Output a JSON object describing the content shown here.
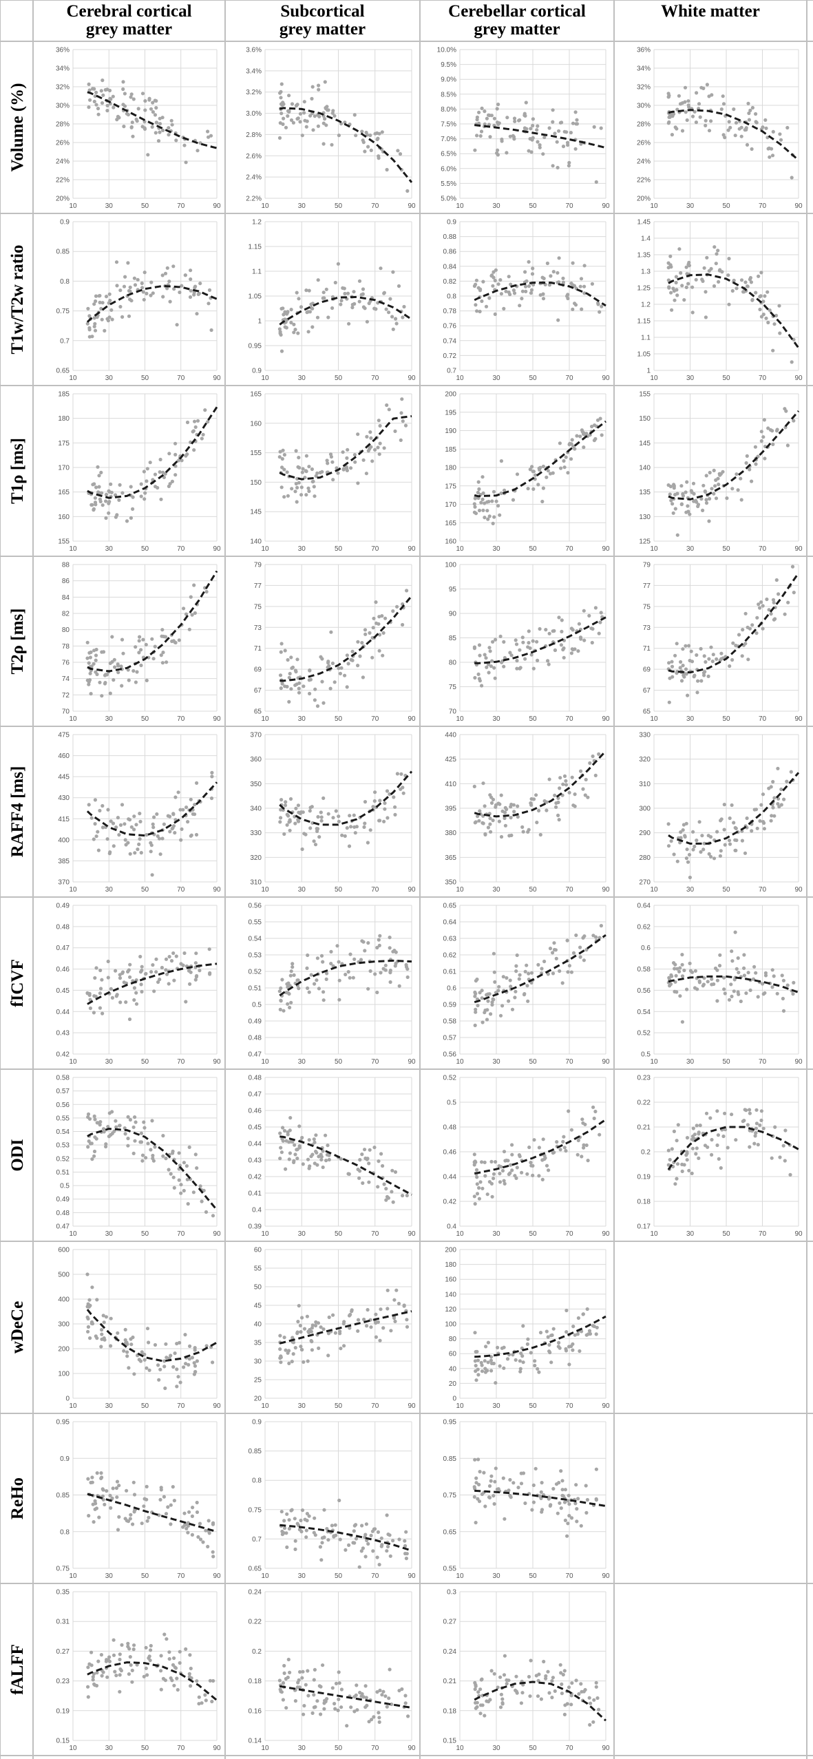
{
  "columns": [
    "Cerebral cortical\ngrey matter",
    "Subcortical\ngrey matter",
    "Cerebellar cortical\ngrey matter",
    "White matter"
  ],
  "rows": [
    "Volume (%)",
    "T1w/T2w ratio",
    "T1ρ [ms]",
    "T2ρ [ms]",
    "RAFF4 [ms]",
    "fICVF",
    "ODI",
    "wDeCe",
    "ReHo",
    "fALFF"
  ],
  "x_axis": {
    "ticks": [
      10,
      30,
      50,
      70,
      90
    ],
    "range": [
      10,
      90
    ]
  },
  "colors": {
    "points": "#a6a6a6",
    "fit": "#1a1a1a",
    "grid": "#d9d9d9",
    "border": "#bfbfbf"
  },
  "chart_data": [
    {
      "row": 0,
      "col": 0,
      "type": "scatter",
      "ylabel": "Volume (%)",
      "yticks": [
        "20%",
        "22%",
        "24%",
        "26%",
        "28%",
        "30%",
        "32%",
        "34%",
        "36%"
      ],
      "ylim": [
        20,
        36
      ],
      "fit": [
        31.9,
        31.3,
        30.4,
        29.4,
        28.4,
        27.5,
        26.6,
        25.9,
        25.4
      ],
      "grid": true
    },
    {
      "row": 0,
      "col": 1,
      "type": "scatter",
      "yticks": [
        "2.2%",
        "2.4%",
        "2.6%",
        "2.8%",
        "3.0%",
        "3.2%",
        "3.4%",
        "3.6%"
      ],
      "ylim": [
        2.2,
        3.6
      ],
      "fit": [
        3.01,
        3.05,
        3.04,
        3.0,
        2.93,
        2.84,
        2.72,
        2.56,
        2.35
      ],
      "grid": true
    },
    {
      "row": 0,
      "col": 2,
      "type": "scatter",
      "yticks": [
        "5.0%",
        "5.5%",
        "6.0%",
        "6.5%",
        "7.0%",
        "7.5%",
        "8.0%",
        "8.5%",
        "9.0%",
        "9.5%",
        "10.0%"
      ],
      "ylim": [
        5,
        10
      ],
      "fit": [
        7.52,
        7.45,
        7.38,
        7.3,
        7.2,
        7.1,
        6.98,
        6.85,
        6.7
      ],
      "grid": true
    },
    {
      "row": 0,
      "col": 3,
      "type": "scatter",
      "yticks": [
        "20%",
        "22%",
        "24%",
        "26%",
        "28%",
        "30%",
        "32%",
        "34%",
        "36%"
      ],
      "ylim": [
        20,
        36
      ],
      "fit": [
        28.8,
        29.3,
        29.5,
        29.4,
        29.0,
        28.2,
        27.2,
        25.8,
        24.1
      ],
      "grid": true
    },
    {
      "row": 1,
      "col": 0,
      "type": "scatter",
      "ylabel": "T1w/T2w ratio",
      "yticks": [
        "0.65",
        "0.7",
        "0.75",
        "0.8",
        "0.85",
        "0.9"
      ],
      "ylim": [
        0.65,
        0.9
      ],
      "fit": [
        0.708,
        0.737,
        0.76,
        0.776,
        0.787,
        0.792,
        0.79,
        0.783,
        0.77
      ],
      "grid": true
    },
    {
      "row": 1,
      "col": 1,
      "type": "scatter",
      "yticks": [
        "0.9",
        "0.95",
        "1",
        "1.05",
        "1.1",
        "1.15",
        "1.2"
      ],
      "ylim": [
        0.9,
        1.2
      ],
      "fit": [
        0.97,
        0.998,
        1.02,
        1.037,
        1.047,
        1.048,
        1.042,
        1.027,
        1.003
      ],
      "grid": true
    },
    {
      "row": 1,
      "col": 2,
      "type": "scatter",
      "yticks": [
        "0.7",
        "0.72",
        "0.74",
        "0.76",
        "0.78",
        "0.8",
        "0.82",
        "0.84",
        "0.86",
        "0.88",
        "0.9"
      ],
      "ylim": [
        0.7,
        0.9
      ],
      "fit": [
        0.785,
        0.797,
        0.807,
        0.814,
        0.818,
        0.818,
        0.813,
        0.803,
        0.787
      ],
      "grid": true
    },
    {
      "row": 1,
      "col": 3,
      "type": "scatter",
      "yticks": [
        "1",
        "1.05",
        "1.1",
        "1.15",
        "1.2",
        "1.25",
        "1.3",
        "1.35",
        "1.4",
        "1.45"
      ],
      "ylim": [
        1,
        1.45
      ],
      "fit": [
        1.238,
        1.27,
        1.288,
        1.29,
        1.277,
        1.248,
        1.203,
        1.143,
        1.068
      ],
      "grid": true
    },
    {
      "row": 2,
      "col": 0,
      "type": "scatter",
      "ylabel": "T1ρ [ms]",
      "yticks": [
        "155",
        "160",
        "165",
        "170",
        "175",
        "180",
        "185"
      ],
      "ylim": [
        155,
        185
      ],
      "fit": [
        167,
        164.8,
        163.8,
        164.2,
        165.8,
        168.4,
        172,
        176.7,
        182.3
      ],
      "grid": true
    },
    {
      "row": 2,
      "col": 1,
      "type": "scatter",
      "yticks": [
        "140",
        "145",
        "150",
        "155",
        "160",
        "165"
      ],
      "ylim": [
        140,
        165
      ],
      "fit": [
        153,
        151.3,
        150.5,
        150.8,
        152.1,
        154.4,
        157.3,
        160.8,
        161.2
      ],
      "grid": true
    },
    {
      "row": 2,
      "col": 2,
      "type": "scatter",
      "yticks": [
        "160",
        "165",
        "170",
        "175",
        "180",
        "185",
        "190",
        "195",
        "200"
      ],
      "ylim": [
        160,
        200
      ],
      "fit": [
        173.5,
        172.2,
        172.4,
        174,
        177,
        180.6,
        184.7,
        188.7,
        192.5
      ],
      "grid": true
    },
    {
      "row": 2,
      "col": 3,
      "type": "scatter",
      "yticks": [
        "125",
        "130",
        "135",
        "140",
        "145",
        "150",
        "155"
      ],
      "ylim": [
        125,
        155
      ],
      "fit": [
        135.3,
        133.8,
        133.5,
        134.5,
        136.5,
        139.4,
        143.1,
        147.2,
        151.5
      ],
      "grid": true
    },
    {
      "row": 3,
      "col": 0,
      "type": "scatter",
      "ylabel": "T2ρ [ms]",
      "yticks": [
        "70",
        "72",
        "74",
        "76",
        "78",
        "80",
        "82",
        "84",
        "86",
        "88"
      ],
      "ylim": [
        70,
        88
      ],
      "fit": [
        76.2,
        75.2,
        74.9,
        75.3,
        76.4,
        78.2,
        80.6,
        83.6,
        87.2
      ],
      "grid": true
    },
    {
      "row": 3,
      "col": 1,
      "type": "scatter",
      "yticks": [
        "65",
        "67",
        "69",
        "71",
        "73",
        "75",
        "77",
        "79"
      ],
      "ylim": [
        65,
        79
      ],
      "fit": [
        68,
        67.9,
        68.1,
        68.6,
        69.4,
        70.6,
        72.1,
        73.9,
        76
      ],
      "grid": true
    },
    {
      "row": 3,
      "col": 2,
      "type": "scatter",
      "yticks": [
        "70",
        "75",
        "80",
        "85",
        "90",
        "95",
        "100"
      ],
      "ylim": [
        70,
        100
      ],
      "fit": [
        80,
        79.8,
        80.1,
        80.9,
        82.1,
        83.6,
        85.3,
        87.2,
        89.2
      ],
      "grid": true
    },
    {
      "row": 3,
      "col": 3,
      "type": "scatter",
      "yticks": [
        "65",
        "67",
        "69",
        "71",
        "73",
        "75",
        "77",
        "79"
      ],
      "ylim": [
        65,
        79
      ],
      "fit": [
        69.3,
        68.8,
        68.7,
        69.1,
        70,
        71.6,
        73.5,
        75.7,
        78.2
      ],
      "grid": true
    },
    {
      "row": 4,
      "col": 0,
      "type": "scatter",
      "ylabel": "RAFF4 [ms]",
      "yticks": [
        "370",
        "385",
        "400",
        "415",
        "430",
        "445",
        "460",
        "475"
      ],
      "ylim": [
        370,
        475
      ],
      "fit": [
        430,
        418,
        409,
        404,
        403,
        407,
        415,
        427,
        441
      ],
      "grid": true
    },
    {
      "row": 4,
      "col": 1,
      "type": "scatter",
      "yticks": [
        "310",
        "320",
        "330",
        "340",
        "350",
        "360",
        "370"
      ],
      "ylim": [
        310,
        370
      ],
      "fit": [
        347,
        340,
        335.5,
        333.3,
        333.3,
        335.5,
        340,
        346.5,
        355
      ],
      "grid": true
    },
    {
      "row": 4,
      "col": 2,
      "type": "scatter",
      "yticks": [
        "350",
        "365",
        "380",
        "395",
        "410",
        "425",
        "440"
      ],
      "ylim": [
        350,
        440
      ],
      "fit": [
        395,
        391.5,
        390,
        390.8,
        394,
        399.5,
        407.5,
        418,
        430
      ],
      "grid": true
    },
    {
      "row": 4,
      "col": 3,
      "type": "scatter",
      "yticks": [
        "270",
        "280",
        "290",
        "300",
        "310",
        "320",
        "330"
      ],
      "ylim": [
        270,
        330
      ],
      "fit": [
        293,
        288,
        285.6,
        285.6,
        287.8,
        292,
        298.2,
        306,
        314.5
      ],
      "grid": true
    },
    {
      "row": 5,
      "col": 0,
      "type": "scatter",
      "ylabel": "fICVF",
      "yticks": [
        "0.42",
        "0.43",
        "0.44",
        "0.45",
        "0.46",
        "0.47",
        "0.48",
        "0.49"
      ],
      "ylim": [
        0.42,
        0.49
      ],
      "fit": [
        0.4395,
        0.4445,
        0.449,
        0.4525,
        0.4555,
        0.458,
        0.46,
        0.4615,
        0.4625
      ],
      "grid": true
    },
    {
      "row": 5,
      "col": 1,
      "type": "scatter",
      "yticks": [
        "0.47",
        "0.48",
        "0.49",
        "0.5",
        "0.51",
        "0.52",
        "0.53",
        "0.54",
        "0.55",
        "0.56"
      ],
      "ylim": [
        0.47,
        0.56
      ],
      "fit": [
        0.499,
        0.507,
        0.514,
        0.519,
        0.523,
        0.525,
        0.526,
        0.5265,
        0.526
      ],
      "grid": true
    },
    {
      "row": 5,
      "col": 2,
      "type": "scatter",
      "yticks": [
        "0.56",
        "0.57",
        "0.58",
        "0.59",
        "0.6",
        "0.61",
        "0.62",
        "0.63",
        "0.64",
        "0.65"
      ],
      "ylim": [
        0.56,
        0.65
      ],
      "fit": [
        0.589,
        0.592,
        0.596,
        0.6,
        0.605,
        0.611,
        0.617,
        0.624,
        0.632
      ],
      "grid": true
    },
    {
      "row": 5,
      "col": 3,
      "type": "scatter",
      "yticks": [
        "0.5",
        "0.52",
        "0.54",
        "0.56",
        "0.58",
        "0.6",
        "0.62",
        "0.64"
      ],
      "ylim": [
        0.5,
        0.64
      ],
      "fit": [
        0.565,
        0.569,
        0.572,
        0.573,
        0.573,
        0.571,
        0.568,
        0.564,
        0.558
      ],
      "grid": true
    },
    {
      "row": 6,
      "col": 0,
      "type": "scatter",
      "ylabel": "ODI",
      "yticks": [
        "0.47",
        "0.48",
        "0.49",
        "0.5",
        "0.51",
        "0.52",
        "0.53",
        "0.54",
        "0.55",
        "0.56",
        "0.57",
        "0.58"
      ],
      "ylim": [
        0.47,
        0.58
      ],
      "fit": [
        0.53,
        0.538,
        0.542,
        0.541,
        0.536,
        0.526,
        0.513,
        0.498,
        0.482
      ],
      "grid": true
    },
    {
      "row": 6,
      "col": 1,
      "type": "scatter",
      "yticks": [
        "0.39",
        "0.4",
        "0.41",
        "0.42",
        "0.43",
        "0.44",
        "0.45",
        "0.46",
        "0.47",
        "0.48"
      ],
      "ylim": [
        0.39,
        0.48
      ],
      "fit": [
        0.445,
        0.444,
        0.441,
        0.437,
        0.432,
        0.427,
        0.421,
        0.415,
        0.409
      ],
      "grid": true
    },
    {
      "row": 6,
      "col": 2,
      "type": "scatter",
      "yticks": [
        "0.4",
        "0.42",
        "0.44",
        "0.46",
        "0.48",
        "0.5",
        "0.52"
      ],
      "ylim": [
        0.4,
        0.52
      ],
      "fit": [
        0.441,
        0.443,
        0.446,
        0.45,
        0.455,
        0.461,
        0.468,
        0.476,
        0.486
      ],
      "grid": true
    },
    {
      "row": 6,
      "col": 3,
      "type": "scatter",
      "yticks": [
        "0.17",
        "0.18",
        "0.19",
        "0.2",
        "0.21",
        "0.22",
        "0.23"
      ],
      "ylim": [
        0.17,
        0.23
      ],
      "fit": [
        0.184,
        0.195,
        0.203,
        0.208,
        0.21,
        0.21,
        0.208,
        0.205,
        0.201
      ],
      "grid": true
    },
    {
      "row": 7,
      "col": 0,
      "type": "scatter",
      "ylabel": "wDeCe",
      "yticks": [
        "0",
        "100",
        "200",
        "300",
        "400",
        "500",
        "600"
      ],
      "ylim": [
        0,
        600
      ],
      "fit": [
        430,
        340,
        265,
        205,
        165,
        150,
        160,
        185,
        225
      ],
      "grid": true
    },
    {
      "row": 7,
      "col": 1,
      "type": "scatter",
      "yticks": [
        "20",
        "25",
        "30",
        "35",
        "40",
        "45",
        "50",
        "55",
        "60"
      ],
      "ylim": [
        20,
        60
      ],
      "fit": [
        33.8,
        35,
        36.3,
        37.6,
        38.8,
        40,
        41.2,
        42.3,
        43.4
      ],
      "grid": true
    },
    {
      "row": 7,
      "col": 2,
      "type": "scatter",
      "yticks": [
        "0",
        "20",
        "40",
        "60",
        "80",
        "100",
        "120",
        "140",
        "160",
        "180",
        "200"
      ],
      "ylim": [
        0,
        200
      ],
      "fit": [
        55,
        56,
        58,
        62,
        68,
        76,
        86,
        97,
        110
      ],
      "grid": true
    },
    {
      "row": 8,
      "col": 0,
      "type": "scatter",
      "ylabel": "ReHo",
      "yticks": [
        "0.75",
        "0.8",
        "0.85",
        "0.9",
        "0.95"
      ],
      "ylim": [
        0.75,
        0.95
      ],
      "fit": [
        0.857,
        0.85,
        0.843,
        0.836,
        0.828,
        0.821,
        0.814,
        0.807,
        0.8
      ],
      "grid": true
    },
    {
      "row": 8,
      "col": 1,
      "type": "scatter",
      "yticks": [
        "0.65",
        "0.7",
        "0.75",
        "0.8",
        "0.85",
        "0.9"
      ],
      "ylim": [
        0.65,
        0.9
      ],
      "fit": [
        0.726,
        0.723,
        0.72,
        0.716,
        0.711,
        0.705,
        0.698,
        0.69,
        0.68
      ],
      "grid": true
    },
    {
      "row": 8,
      "col": 2,
      "type": "scatter",
      "yticks": [
        "0.55",
        "0.65",
        "0.75",
        "0.85",
        "0.95"
      ],
      "ylim": [
        0.55,
        0.95
      ],
      "fit": [
        0.763,
        0.761,
        0.758,
        0.754,
        0.749,
        0.743,
        0.736,
        0.728,
        0.72
      ],
      "grid": true
    },
    {
      "row": 9,
      "col": 0,
      "type": "scatter",
      "ylabel": "fALFF",
      "yticks": [
        "0.15",
        "0.19",
        "0.23",
        "0.27",
        "0.31",
        "0.35"
      ],
      "ylim": [
        0.15,
        0.35
      ],
      "fit": [
        0.229,
        0.241,
        0.25,
        0.255,
        0.254,
        0.249,
        0.239,
        0.224,
        0.204
      ],
      "grid": true
    },
    {
      "row": 9,
      "col": 1,
      "type": "scatter",
      "yticks": [
        "0.14",
        "0.16",
        "0.18",
        "0.2",
        "0.22",
        "0.24"
      ],
      "ylim": [
        0.14,
        0.24
      ],
      "fit": [
        0.178,
        0.176,
        0.174,
        0.172,
        0.17,
        0.168,
        0.166,
        0.164,
        0.162
      ],
      "grid": true
    },
    {
      "row": 9,
      "col": 2,
      "type": "scatter",
      "yticks": [
        "0.15",
        "0.18",
        "0.21",
        "0.24",
        "0.27",
        "0.3"
      ],
      "ylim": [
        0.15,
        0.3
      ],
      "fit": [
        0.183,
        0.193,
        0.201,
        0.207,
        0.209,
        0.207,
        0.199,
        0.187,
        0.17
      ],
      "grid": true
    }
  ]
}
